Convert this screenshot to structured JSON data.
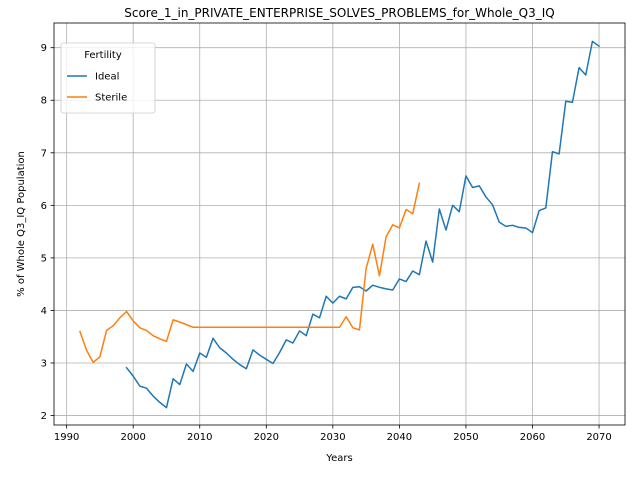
{
  "chart_data": {
    "type": "line",
    "title": "Score_1_in_PRIVATE_ENTERPRISE_SOLVES_PROBLEMS_for_Whole_Q3_IQ",
    "xlabel": "Years",
    "ylabel": "% of Whole Q3_IQ Population",
    "xlim": [
      1988.1,
      2073.9
    ],
    "ylim": [
      1.82,
      9.47
    ],
    "xticks": [
      1990,
      2000,
      2010,
      2020,
      2030,
      2040,
      2050,
      2060,
      2070
    ],
    "yticks": [
      2,
      3,
      4,
      5,
      6,
      7,
      8,
      9
    ],
    "grid": true,
    "legend": {
      "title": "Fertility",
      "placement": "top-left"
    },
    "series": [
      {
        "name": "Ideal",
        "color": "#1f77b4",
        "x": [
          1999,
          2000,
          2001,
          2002,
          2003,
          2004,
          2005,
          2006,
          2007,
          2008,
          2009,
          2010,
          2011,
          2012,
          2013,
          2014,
          2015,
          2016,
          2017,
          2018,
          2019,
          2020,
          2021,
          2022,
          2023,
          2024,
          2025,
          2026,
          2027,
          2028,
          2029,
          2030,
          2031,
          2032,
          2033,
          2034,
          2035,
          2036,
          2037,
          2038,
          2039,
          2040,
          2041,
          2042,
          2043,
          2044,
          2045,
          2046,
          2047,
          2048,
          2049,
          2050,
          2051,
          2052,
          2053,
          2054,
          2055,
          2056,
          2057,
          2058,
          2059,
          2060,
          2061,
          2062,
          2063,
          2064,
          2065,
          2066,
          2067,
          2068,
          2069,
          2070
        ],
        "y": [
          2.91,
          2.75,
          2.56,
          2.52,
          2.37,
          2.25,
          2.15,
          2.7,
          2.59,
          2.98,
          2.84,
          3.19,
          3.11,
          3.47,
          3.29,
          3.19,
          3.07,
          2.97,
          2.89,
          3.25,
          3.15,
          3.07,
          2.99,
          3.2,
          3.44,
          3.38,
          3.61,
          3.52,
          3.93,
          3.86,
          4.27,
          4.14,
          4.27,
          4.22,
          4.44,
          4.45,
          4.37,
          4.48,
          4.44,
          4.41,
          4.39,
          4.6,
          4.55,
          4.75,
          4.68,
          5.32,
          4.92,
          5.93,
          5.53,
          6.0,
          5.88,
          6.56,
          6.34,
          6.37,
          6.16,
          6.01,
          5.68,
          5.6,
          5.62,
          5.58,
          5.57,
          5.48,
          5.9,
          5.95,
          7.02,
          6.98,
          7.98,
          7.96,
          8.62,
          8.48,
          9.12,
          9.03
        ]
      },
      {
        "name": "Sterile",
        "color": "#ff7f0e",
        "x": [
          1992,
          1993,
          1994,
          1995,
          1996,
          1997,
          1998,
          1999,
          2000,
          2001,
          2002,
          2003,
          2004,
          2005,
          2006,
          2007,
          2008,
          2009,
          2010,
          2011,
          2012,
          2013,
          2014,
          2015,
          2016,
          2017,
          2018,
          2019,
          2020,
          2021,
          2022,
          2023,
          2024,
          2025,
          2026,
          2027,
          2028,
          2029,
          2030,
          2031,
          2032,
          2033,
          2034,
          2035,
          2036,
          2037,
          2038,
          2039,
          2040,
          2041,
          2042,
          2043
        ],
        "y": [
          3.6,
          3.24,
          3.01,
          3.12,
          3.62,
          3.71,
          3.86,
          3.98,
          3.8,
          3.67,
          3.62,
          3.52,
          3.46,
          3.41,
          3.82,
          3.78,
          3.73,
          3.68,
          3.68,
          3.68,
          3.68,
          3.68,
          3.68,
          3.68,
          3.68,
          3.68,
          3.68,
          3.68,
          3.68,
          3.68,
          3.68,
          3.68,
          3.68,
          3.68,
          3.68,
          3.68,
          3.68,
          3.68,
          3.68,
          3.68,
          3.88,
          3.67,
          3.63,
          4.8,
          5.26,
          4.66,
          5.4,
          5.63,
          5.57,
          5.92,
          5.84,
          6.42
        ]
      }
    ]
  }
}
